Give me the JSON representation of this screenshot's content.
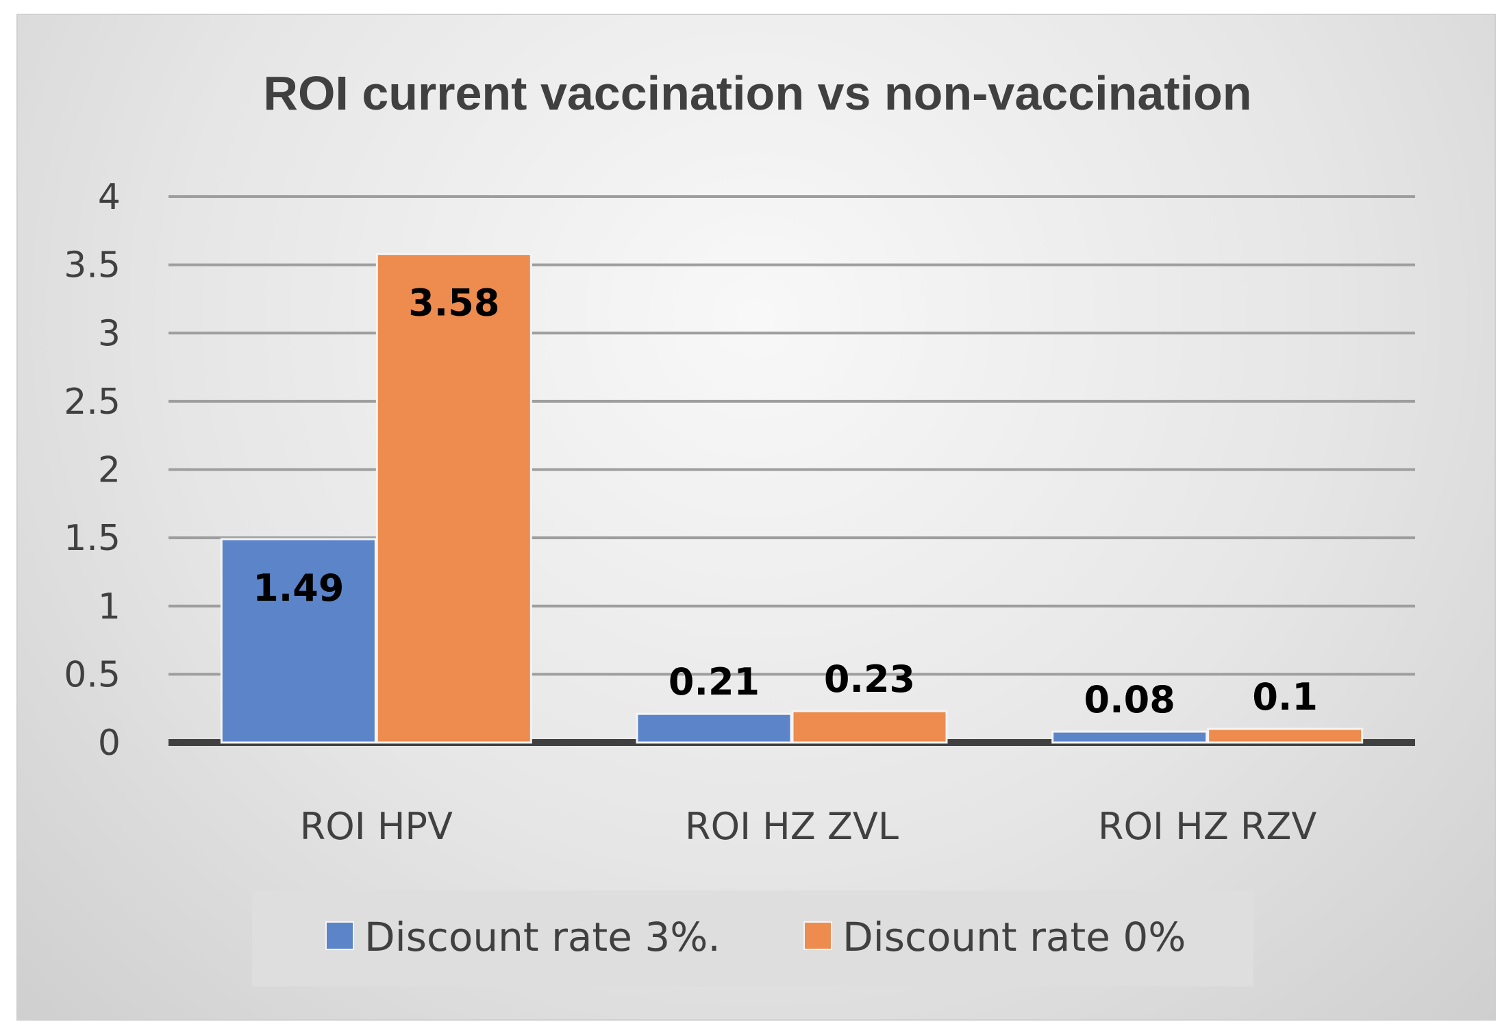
{
  "chart_data": {
    "type": "bar",
    "title": "ROI current vaccination vs non-vaccination",
    "categories": [
      "ROI HPV",
      "ROI HZ ZVL",
      "ROI HZ RZV"
    ],
    "series": [
      {
        "name": "Discount rate 3%.",
        "color": "#5b84c9",
        "values": [
          1.49,
          0.21,
          0.08
        ],
        "labels": [
          "1.49",
          "0.21",
          "0.08"
        ]
      },
      {
        "name": "Discount rate 0%",
        "color": "#ed8c4e",
        "values": [
          3.58,
          0.23,
          0.1
        ],
        "labels": [
          "3.58",
          "0.23",
          "0.1"
        ]
      }
    ],
    "ylim": [
      0,
      4
    ],
    "yticks": [
      "0",
      "0.5",
      "1",
      "1.5",
      "2",
      "2.5",
      "3",
      "3.5",
      "4"
    ],
    "xlabel": "",
    "ylabel": "",
    "grid": true,
    "legend_position": "bottom"
  }
}
